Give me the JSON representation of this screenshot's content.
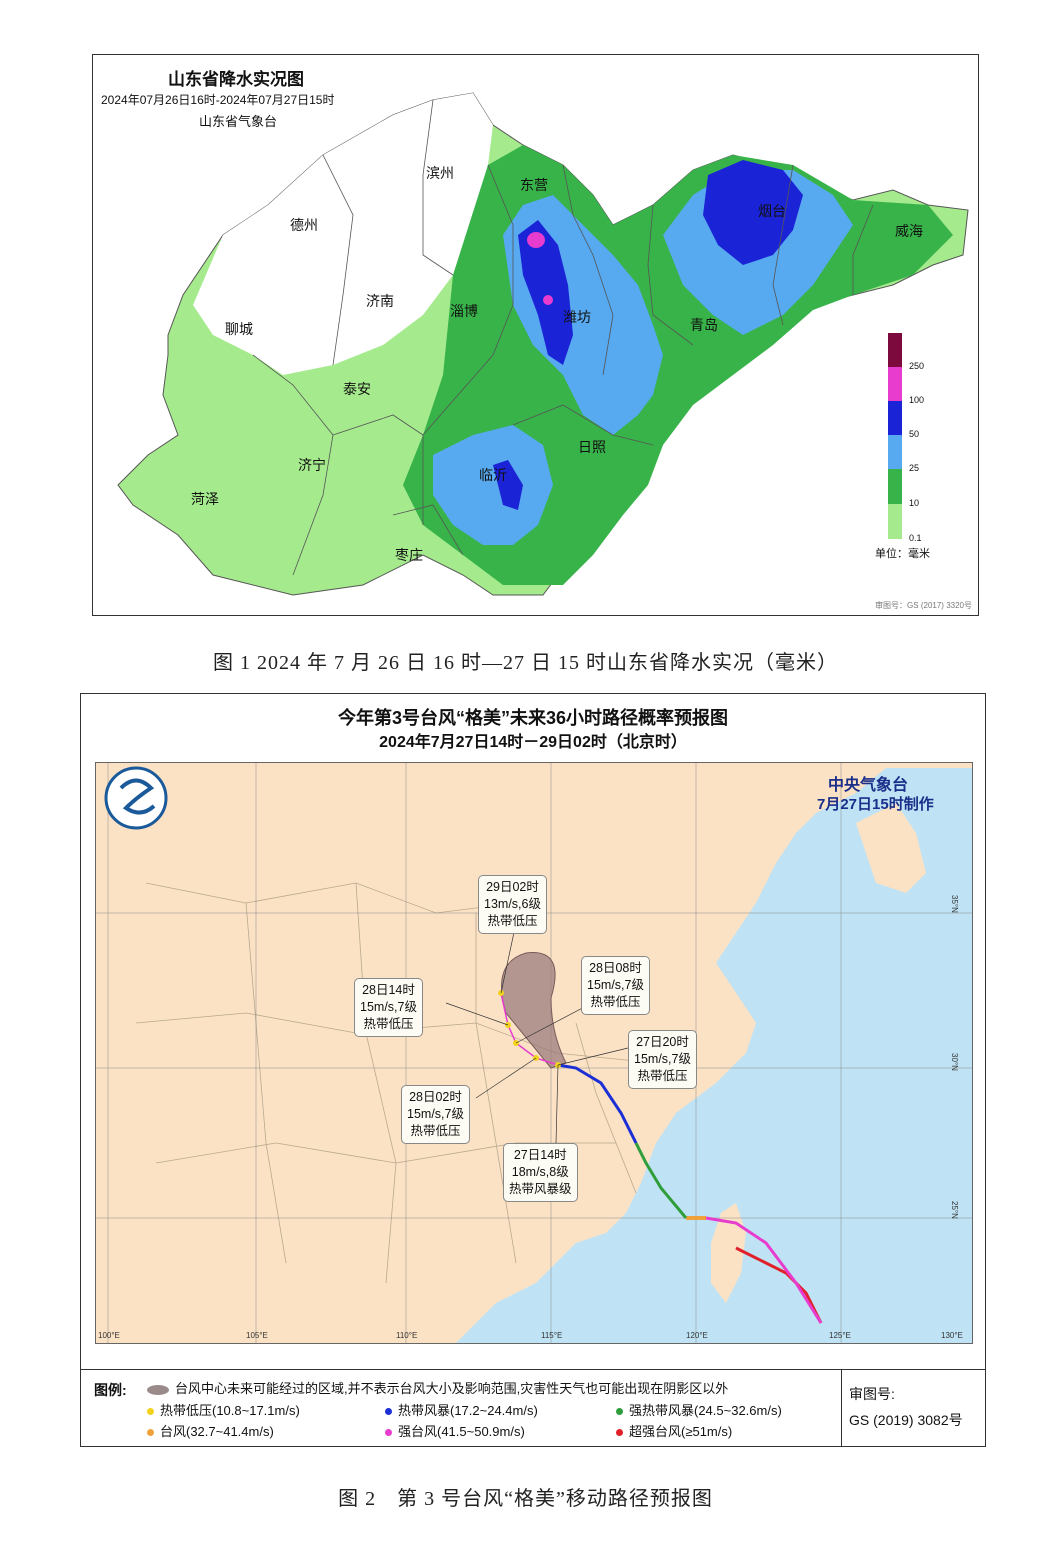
{
  "map1": {
    "title": "山东省降水实况图",
    "period": "2024年07月26日16时-2024年07月27日15时",
    "agency": "山东省气象台",
    "cities": [
      "滨州",
      "东营",
      "德州",
      "烟台",
      "威海",
      "济南",
      "淄博",
      "潍坊",
      "聊城",
      "青岛",
      "泰安",
      "日照",
      "济宁",
      "临沂",
      "菏泽",
      "枣庄"
    ],
    "legend": {
      "ticks": [
        "250",
        "100",
        "50",
        "25",
        "10",
        "0.1"
      ],
      "colors": [
        "#7c0a3c",
        "#e83ccf",
        "#1b23d6",
        "#57a9f0",
        "#38b34a",
        "#a5eb8d"
      ],
      "unit": "单位：毫米"
    },
    "review_no": "审图号：GS (2017) 3320号"
  },
  "caption1": "图 1 2024 年 7 月 26 日 16 时—27 日 15 时山东省降水实况（毫米）",
  "map2": {
    "title": "今年第3号台风“格美”未来36小时路径概率预报图",
    "period": "2024年7月27日14时－29日02时（北京时）",
    "agency": "中央气象台",
    "issued": "7月27日15时制作",
    "forecast_points": [
      {
        "time": "29日02时",
        "wind": "13m/s,6级",
        "level": "热带低压"
      },
      {
        "time": "28日14时",
        "wind": "15m/s,7级",
        "level": "热带低压"
      },
      {
        "time": "28日08时",
        "wind": "15m/s,7级",
        "level": "热带低压"
      },
      {
        "time": "27日20时",
        "wind": "15m/s,7级",
        "level": "热带低压"
      },
      {
        "time": "28日02时",
        "wind": "15m/s,7级",
        "level": "热带低压"
      },
      {
        "time": "27日14时",
        "wind": "18m/s,8级",
        "level": "热带风暴级"
      }
    ],
    "lon_ticks": [
      "100°E",
      "105°E",
      "110°E",
      "115°E",
      "120°E",
      "125°E",
      "130°E"
    ],
    "lat_ticks": [
      "35°N",
      "30°N",
      "25°N"
    ],
    "legend": {
      "title": "图例:",
      "cone": "台风中心未来可能经过的区域,并不表示台风大小及影响范围,灾害性天气也可能出现在阴影区以外",
      "items": [
        {
          "label": "热带低压(10.8~17.1m/s)",
          "color": "#f2d21b"
        },
        {
          "label": "热带风暴(17.2~24.4m/s)",
          "color": "#1b2fd6"
        },
        {
          "label": "强热带风暴(24.5~32.6m/s)",
          "color": "#2f9e3a"
        },
        {
          "label": "台风(32.7~41.4m/s)",
          "color": "#f0a23a"
        },
        {
          "label": "强台风(41.5~50.9m/s)",
          "color": "#e83ccf"
        },
        {
          "label": "超强台风(≥51m/s)",
          "color": "#e0202a"
        }
      ],
      "review_label": "审图号:",
      "review_no": "GS (2019) 3082号"
    }
  },
  "caption2": "图 2　第 3 号台风“格美”移动路径预报图"
}
